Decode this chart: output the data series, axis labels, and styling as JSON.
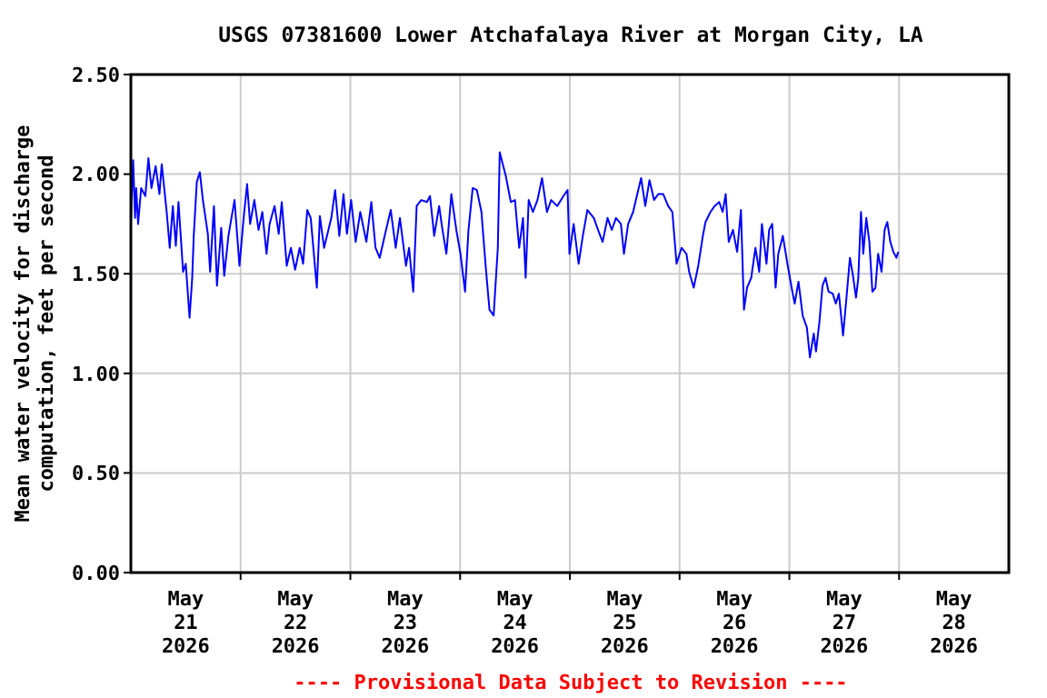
{
  "chart_data": {
    "type": "line",
    "title": "USGS 07381600 Lower Atchafalaya River at Morgan City, LA",
    "ylabel": "Mean water velocity for discharge\ncomputation, feet per second",
    "annotations": [
      "---- Provisional Data Subject to Revision ----"
    ],
    "xlim": [
      "2026-05-21T00:00",
      "2026-05-29T00:00"
    ],
    "xticks": [
      {
        "value": "2026-05-21T12:00",
        "label": "May\n21\n2026"
      },
      {
        "value": "2026-05-22T00:00",
        "label": null
      },
      {
        "value": "2026-05-22T12:00",
        "label": "May\n22\n2026"
      },
      {
        "value": "2026-05-23T00:00",
        "label": null
      },
      {
        "value": "2026-05-23T12:00",
        "label": "May\n23\n2026"
      },
      {
        "value": "2026-05-24T00:00",
        "label": null
      },
      {
        "value": "2026-05-24T12:00",
        "label": "May\n24\n2026"
      },
      {
        "value": "2026-05-25T00:00",
        "label": null
      },
      {
        "value": "2026-05-25T12:00",
        "label": "May\n25\n2026"
      },
      {
        "value": "2026-05-26T00:00",
        "label": null
      },
      {
        "value": "2026-05-26T12:00",
        "label": "May\n26\n2026"
      },
      {
        "value": "2026-05-27T00:00",
        "label": null
      },
      {
        "value": "2026-05-27T12:00",
        "label": "May\n27\n2026"
      },
      {
        "value": "2026-05-28T00:00",
        "label": null
      },
      {
        "value": "2026-05-28T12:00",
        "label": "May\n28\n2026"
      }
    ],
    "ylim": [
      0,
      2.5
    ],
    "yticks": [
      {
        "value": 0,
        "label": "0.00"
      },
      {
        "value": 0.5,
        "label": "0.50"
      },
      {
        "value": 1,
        "label": "1.00"
      },
      {
        "value": 1.5,
        "label": "1.50"
      },
      {
        "value": 2,
        "label": "2.00"
      },
      {
        "value": 2.5,
        "label": "2.50"
      }
    ],
    "grid": true,
    "marker": "none",
    "line_style": "solid",
    "series": [
      {
        "color": "#0000ff",
        "x": [
          "2026-05-21T00:00",
          "2026-05-21T00:30",
          "2026-05-21T00:55",
          "2026-05-21T01:10",
          "2026-05-21T01:35",
          "2026-05-21T02:15",
          "2026-05-21T03:10",
          "2026-05-21T03:50",
          "2026-05-21T04:30",
          "2026-05-21T05:25",
          "2026-05-21T06:15",
          "2026-05-21T06:45",
          "2026-05-21T07:50",
          "2026-05-21T08:30",
          "2026-05-21T09:10",
          "2026-05-21T09:50",
          "2026-05-21T10:25",
          "2026-05-21T11:25",
          "2026-05-21T12:00",
          "2026-05-21T12:50",
          "2026-05-21T13:25",
          "2026-05-21T13:45",
          "2026-05-21T14:25",
          "2026-05-21T15:05",
          "2026-05-21T15:45",
          "2026-05-21T16:50",
          "2026-05-21T17:20",
          "2026-05-21T18:10",
          "2026-05-21T18:50",
          "2026-05-21T19:45",
          "2026-05-21T20:25",
          "2026-05-21T21:20",
          "2026-05-21T22:40",
          "2026-05-21T23:45",
          "2026-05-22T00:40",
          "2026-05-22T01:25",
          "2026-05-22T02:05",
          "2026-05-22T03:00",
          "2026-05-22T03:55",
          "2026-05-22T04:45",
          "2026-05-22T05:40",
          "2026-05-22T06:20",
          "2026-05-22T07:25",
          "2026-05-22T08:20",
          "2026-05-22T09:00",
          "2026-05-22T10:05",
          "2026-05-22T11:00",
          "2026-05-22T11:55",
          "2026-05-22T12:55",
          "2026-05-22T13:40",
          "2026-05-22T14:35",
          "2026-05-22T15:20",
          "2026-05-22T16:40",
          "2026-05-22T17:20",
          "2026-05-22T18:15",
          "2026-05-22T19:50",
          "2026-05-22T20:40",
          "2026-05-22T21:35",
          "2026-05-22T22:30",
          "2026-05-22T23:15",
          "2026-05-23T00:10",
          "2026-05-23T01:10",
          "2026-05-23T02:10",
          "2026-05-23T03:30",
          "2026-05-23T04:35",
          "2026-05-23T05:30",
          "2026-05-23T06:25",
          "2026-05-23T07:30",
          "2026-05-23T08:50",
          "2026-05-23T09:55",
          "2026-05-23T10:50",
          "2026-05-23T12:10",
          "2026-05-23T12:50",
          "2026-05-23T13:45",
          "2026-05-23T14:30",
          "2026-05-23T15:30",
          "2026-05-23T16:45",
          "2026-05-23T17:25",
          "2026-05-23T18:20",
          "2026-05-23T19:25",
          "2026-05-23T20:05",
          "2026-05-23T21:00",
          "2026-05-23T22:05",
          "2026-05-23T23:10",
          "2026-05-24T00:05",
          "2026-05-24T01:05",
          "2026-05-24T01:50",
          "2026-05-24T02:45",
          "2026-05-24T03:40",
          "2026-05-24T04:40",
          "2026-05-24T05:35",
          "2026-05-24T06:25",
          "2026-05-24T07:20",
          "2026-05-24T08:15",
          "2026-05-24T08:40",
          "2026-05-24T09:20",
          "2026-05-24T10:00",
          "2026-05-24T11:05",
          "2026-05-24T12:00",
          "2026-05-24T12:55",
          "2026-05-24T13:45",
          "2026-05-24T14:20",
          "2026-05-24T15:00",
          "2026-05-24T15:55",
          "2026-05-24T16:55",
          "2026-05-24T17:55",
          "2026-05-24T19:00",
          "2026-05-24T19:55",
          "2026-05-24T21:15",
          "2026-05-24T22:35",
          "2026-05-24T23:30",
          "2026-05-24T23:55",
          "2026-05-25T00:50",
          "2026-05-25T01:55",
          "2026-05-25T02:50",
          "2026-05-25T03:50",
          "2026-05-25T05:15",
          "2026-05-25T06:10",
          "2026-05-25T07:10",
          "2026-05-25T08:15",
          "2026-05-25T09:10",
          "2026-05-25T10:05",
          "2026-05-25T11:10",
          "2026-05-25T11:50",
          "2026-05-25T12:45",
          "2026-05-25T13:50",
          "2026-05-25T14:45",
          "2026-05-25T15:35",
          "2026-05-25T16:30",
          "2026-05-25T17:25",
          "2026-05-25T18:25",
          "2026-05-25T19:20",
          "2026-05-25T20:25",
          "2026-05-25T21:30",
          "2026-05-25T22:25",
          "2026-05-25T23:20",
          "2026-05-26T00:25",
          "2026-05-26T01:30",
          "2026-05-26T02:05",
          "2026-05-26T03:05",
          "2026-05-26T04:05",
          "2026-05-26T05:05",
          "2026-05-26T05:40",
          "2026-05-26T06:45",
          "2026-05-26T07:40",
          "2026-05-26T08:40",
          "2026-05-26T09:25",
          "2026-05-26T10:05",
          "2026-05-26T10:45",
          "2026-05-26T11:40",
          "2026-05-26T12:35",
          "2026-05-26T13:25",
          "2026-05-26T14:05",
          "2026-05-26T14:45",
          "2026-05-26T15:40",
          "2026-05-26T16:35",
          "2026-05-26T17:25",
          "2026-05-26T18:00",
          "2026-05-26T19:00",
          "2026-05-26T19:35",
          "2026-05-26T20:15",
          "2026-05-26T21:00",
          "2026-05-26T21:35",
          "2026-05-26T22:35",
          "2026-05-26T23:35",
          "2026-05-27T00:30",
          "2026-05-27T01:10",
          "2026-05-27T02:00",
          "2026-05-27T02:55",
          "2026-05-27T03:50",
          "2026-05-27T04:30",
          "2026-05-27T05:20",
          "2026-05-27T05:50",
          "2026-05-27T06:35",
          "2026-05-27T07:15",
          "2026-05-27T07:55",
          "2026-05-27T08:35",
          "2026-05-27T09:30",
          "2026-05-27T10:10",
          "2026-05-27T10:50",
          "2026-05-27T11:45",
          "2026-05-27T12:30",
          "2026-05-27T13:15",
          "2026-05-27T13:55",
          "2026-05-27T14:35",
          "2026-05-27T15:05",
          "2026-05-27T15:40",
          "2026-05-27T16:10",
          "2026-05-27T16:50",
          "2026-05-27T17:30",
          "2026-05-27T18:10",
          "2026-05-27T18:50",
          "2026-05-27T19:25",
          "2026-05-27T20:10",
          "2026-05-27T20:50",
          "2026-05-27T21:25",
          "2026-05-27T22:05",
          "2026-05-27T22:45",
          "2026-05-27T23:25",
          "2026-05-27T23:50"
        ],
        "values": [
          1.76,
          2.07,
          1.78,
          1.93,
          1.75,
          1.93,
          1.89,
          2.08,
          1.93,
          2.04,
          1.9,
          2.05,
          1.81,
          1.63,
          1.84,
          1.64,
          1.86,
          1.51,
          1.55,
          1.28,
          1.48,
          1.69,
          1.96,
          2.01,
          1.87,
          1.7,
          1.51,
          1.84,
          1.44,
          1.73,
          1.49,
          1.69,
          1.87,
          1.54,
          1.78,
          1.95,
          1.75,
          1.87,
          1.72,
          1.81,
          1.6,
          1.75,
          1.84,
          1.7,
          1.86,
          1.54,
          1.63,
          1.52,
          1.63,
          1.55,
          1.82,
          1.78,
          1.43,
          1.79,
          1.63,
          1.78,
          1.92,
          1.69,
          1.9,
          1.7,
          1.87,
          1.66,
          1.81,
          1.66,
          1.86,
          1.63,
          1.58,
          1.69,
          1.82,
          1.63,
          1.78,
          1.54,
          1.63,
          1.41,
          1.84,
          1.87,
          1.86,
          1.89,
          1.69,
          1.84,
          1.73,
          1.6,
          1.9,
          1.72,
          1.6,
          1.41,
          1.72,
          1.93,
          1.92,
          1.81,
          1.54,
          1.32,
          1.29,
          1.63,
          2.11,
          2.05,
          1.99,
          1.86,
          1.87,
          1.63,
          1.78,
          1.48,
          1.87,
          1.81,
          1.87,
          1.98,
          1.81,
          1.87,
          1.84,
          1.89,
          1.92,
          1.6,
          1.75,
          1.55,
          1.69,
          1.82,
          1.78,
          1.72,
          1.66,
          1.78,
          1.72,
          1.78,
          1.75,
          1.6,
          1.75,
          1.81,
          1.9,
          1.98,
          1.84,
          1.97,
          1.87,
          1.9,
          1.9,
          1.84,
          1.81,
          1.55,
          1.63,
          1.6,
          1.51,
          1.43,
          1.54,
          1.69,
          1.76,
          1.81,
          1.84,
          1.86,
          1.81,
          1.9,
          1.66,
          1.72,
          1.61,
          1.82,
          1.32,
          1.43,
          1.48,
          1.63,
          1.51,
          1.75,
          1.55,
          1.72,
          1.75,
          1.43,
          1.6,
          1.69,
          1.55,
          1.43,
          1.35,
          1.46,
          1.29,
          1.23,
          1.08,
          1.2,
          1.11,
          1.26,
          1.44,
          1.48,
          1.41,
          1.4,
          1.35,
          1.4,
          1.19,
          1.38,
          1.58,
          1.49,
          1.38,
          1.48,
          1.81,
          1.6,
          1.78,
          1.66,
          1.41,
          1.43,
          1.6,
          1.51,
          1.72,
          1.76,
          1.66,
          1.61,
          1.58,
          1.61
        ]
      }
    ]
  }
}
